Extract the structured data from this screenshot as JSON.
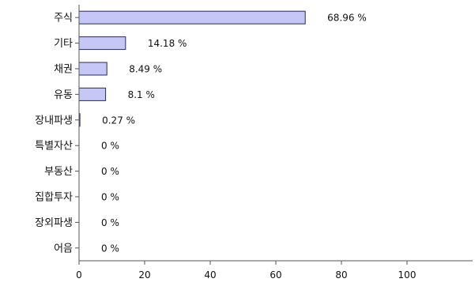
{
  "chart_data": {
    "type": "bar",
    "orientation": "horizontal",
    "categories": [
      "주식",
      "기타",
      "채권",
      "유동",
      "장내파생",
      "특별자산",
      "부동산",
      "집합투자",
      "장외파생",
      "어음"
    ],
    "values": [
      68.96,
      14.18,
      8.49,
      8.1,
      0.27,
      0,
      0,
      0,
      0,
      0
    ],
    "value_labels": [
      "68.96 %",
      "14.18 %",
      "8.49 %",
      "8.1 %",
      "0.27 %",
      "0 %",
      "0 %",
      "0 %",
      "0 %",
      "0 %"
    ],
    "xticks": [
      0,
      20,
      40,
      60,
      80,
      100
    ],
    "xlim": [
      0,
      120
    ],
    "title": "",
    "xlabel": "",
    "ylabel": "",
    "grid": false,
    "legend": "none",
    "bar_color": "#c6c6f7",
    "bar_edge_color": "#2a2a55"
  }
}
